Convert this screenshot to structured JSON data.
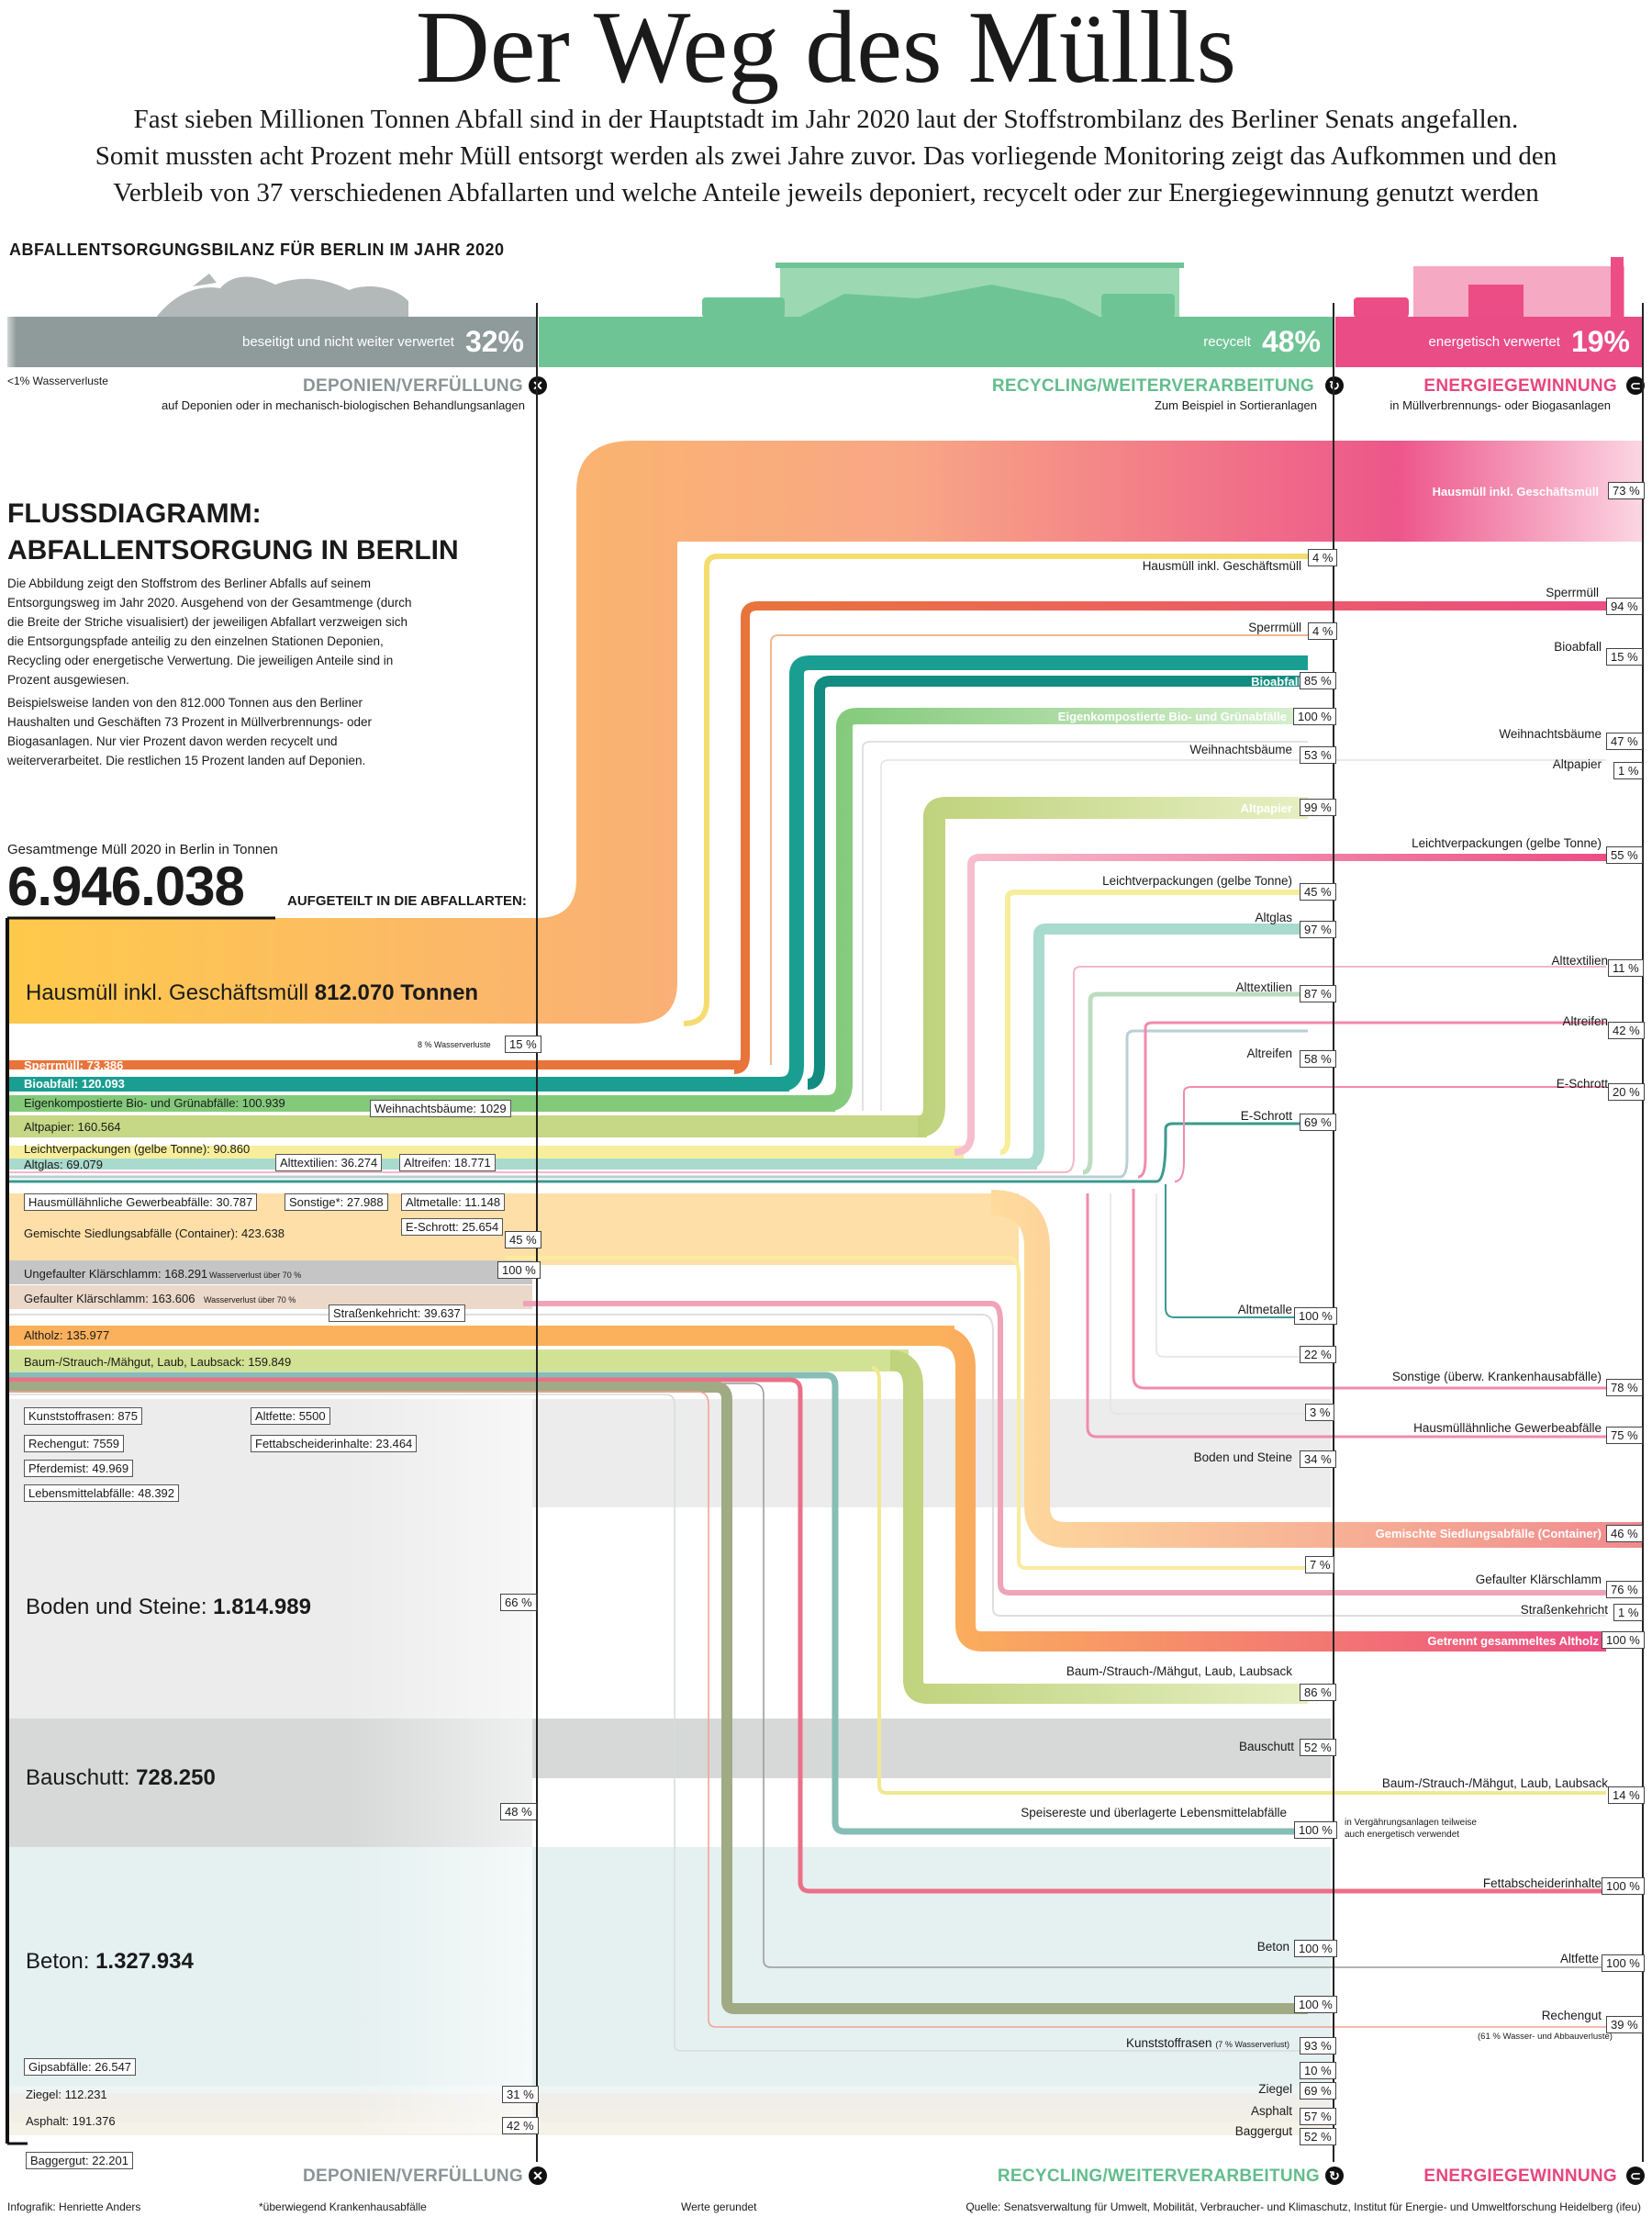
{
  "title": "Der Weg des Müllls",
  "intro": [
    "Fast sieben Millionen Tonnen Abfall sind in der Hauptstadt im Jahr 2020 laut der Stoffstrombilanz des Berliner Senats angefallen.",
    "Somit mussten acht Prozent mehr Müll entsorgt werden als zwei Jahre zuvor. Das vorliegende Monitoring zeigt das Aufkommen und den",
    "Verbleib von 37 verschiedenen Abfallarten und welche Anteile jeweils deponiert, recycelt oder zur Energiegewinnung genutzt werden"
  ],
  "bilanz": {
    "heading": "ABFALLENTSORGUNGSBILANZ FÜR BERLIN IM JAHR 2020",
    "water_note": "<1% Wasserverluste",
    "bars": [
      {
        "label": "beseitigt und nicht weiter verwertet",
        "pct": "32%",
        "value": 32,
        "color": "#8f9a9a"
      },
      {
        "label": "recycelt",
        "pct": "48%",
        "value": 48,
        "color": "#6fc495"
      },
      {
        "label": "energetisch verwertet",
        "pct": "19%",
        "value": 19,
        "color": "#ea4c86"
      }
    ],
    "categories": [
      {
        "name": "DEPONIEN/VERFÜLLUNG",
        "sub": "auf Deponien oder in mechanisch-biologischen Behandlungsanlagen",
        "color": "#8a9596",
        "symbol": "✕"
      },
      {
        "name": "RECYCLING/WEITERVERARBEITUNG",
        "sub": "Zum Beispiel in Sortieranlagen",
        "color": "#62bd8c",
        "symbol": "↻"
      },
      {
        "name": "ENERGIEGEWINNUNG",
        "sub": "in Müllverbrennungs- oder Biogasanlagen",
        "color": "#e8457e",
        "symbol": "⊂"
      }
    ]
  },
  "flow": {
    "heading_1": "FLUSSDIAGRAMM:",
    "heading_2": "ABFALLENTSORGUNG IN BERLIN",
    "desc_1": "Die Abbildung zeigt den Stoffstrom des Berliner Abfalls auf seinem Entsorgungsweg im Jahr 2020. Ausgehend von der Gesamtmenge (durch die Breite der Striche visualisiert) der jeweiligen Abfallart verzweigen sich die Entsorgungspfade anteilig zu den einzelnen Stationen Deponien, Recycling oder energetische Verwertung. Die jeweiligen Anteile sind in Prozent ausgewiesen.",
    "desc_2": "Beispielsweise landen von den 812.000 Tonnen aus den Berliner Haushalten und Geschäften 73 Prozent in Müllverbrennungs- oder Biogasanlagen. Nur vier Prozent davon werden recycelt und weiterverarbeitet. Die restlichen 15 Prozent landen auf Deponien.",
    "gesamt_label": "Gesamtmenge Müll 2020 in Berlin in Tonnen",
    "gesamt_value": "6.946.038",
    "aufgeteilt": "AUFGETEILT IN DIE ABFALLARTEN:"
  },
  "left": {
    "hausmuell_name": "Hausmüll inkl. Geschäftsmüll",
    "hausmuell_value": "812.070 Tonnen",
    "wasser_8": "8 % Wasserverluste",
    "p15": "15 %",
    "sperr": "Sperrmüll: 73.386",
    "bio": "Bioabfall: 120.093",
    "eigen": "Eigenkompostierte Bio- und Grünabfälle: 100.939",
    "weih": "Weihnachtsbäume: 1029",
    "altpapier": "Altpapier: 160.564",
    "leicht": "Leichtverpackungen (gelbe Tonne): 90.860",
    "altglas": "Altglas: 69.079",
    "alttext": "Alttextilien: 36.274",
    "altreifen": "Altreifen: 18.771",
    "hausaehnl": "Hausmüllähnliche Gewerbeabfälle: 30.787",
    "sonstige": "Sonstige*: 27.988",
    "altmetalle": "Altmetalle: 11.148",
    "eschrott": "E-Schrott: 25.654",
    "gemischt": "Gemischte Siedlungsabfälle (Container): 423.638",
    "p45": "45 %",
    "p100": "100 %",
    "ungefault": "Ungefaulter Klärschlamm: 168.291",
    "gefault": "Gefaulter Klärschlamm: 163.606",
    "wasser_70a": "Wasserverlust über 70 %",
    "wasser_70b": "Wasserverlust über 70 %",
    "strassen": "Straßenkehricht: 39.637",
    "altholz": "Altholz: 135.977",
    "baum": "Baum-/Strauch-/Mähgut, Laub, Laubsack: 159.849",
    "kunststoff": "Kunststoffrasen: 875",
    "rechengut": "Rechengut: 7559",
    "pferdemist": "Pferdemist: 49.969",
    "lebensmittel": "Lebensmittelabfälle: 48.392",
    "altfette": "Altfette: 5500",
    "fettab": "Fettabscheiderinhalte: 23.464",
    "boden_name": "Boden und Steine:",
    "boden_value": "1.814.989",
    "p66": "66 %",
    "bauschutt_name": "Bauschutt:",
    "bauschutt_value": "728.250",
    "p48": "48 %",
    "beton_name": "Beton:",
    "beton_value": "1.327.934",
    "gips": "Gipsabfälle: 26.547",
    "ziegel": "Ziegel: 112.231",
    "p31": "31 %",
    "asphalt": "Asphalt: 191.376",
    "p42": "42 %",
    "baggergut": "Baggergut: 22.201"
  },
  "recycling_labels": [
    {
      "text": "Hausmüll inkl. Geschäftsmüll",
      "pct": "4 %"
    },
    {
      "text": "Sperrmüll",
      "pct": "4 %"
    },
    {
      "text": "Bioabfall",
      "pct": "85 %"
    },
    {
      "text": "Eigenkompostierte Bio- und Grünabfälle",
      "pct": "100 %"
    },
    {
      "text": "Weihnachtsbäume",
      "pct": "53 %"
    },
    {
      "text": "Altpapier",
      "pct": "99 %"
    },
    {
      "text": "Leichtverpackungen (gelbe Tonne)",
      "pct": "45 %"
    },
    {
      "text": "Altglas",
      "pct": "97 %"
    },
    {
      "text": "Alttextilien",
      "pct": "87 %"
    },
    {
      "text": "Altreifen",
      "pct": "58 %"
    },
    {
      "text": "E-Schrott",
      "pct": "69 %"
    },
    {
      "text": "Altmetalle",
      "pct": "100 %"
    },
    {
      "text": "",
      "pct": "22 %"
    },
    {
      "text": "",
      "pct": "3 %"
    },
    {
      "text": "Boden und Steine",
      "pct": "34 %"
    },
    {
      "text": "",
      "pct": "7 %"
    },
    {
      "text": "Baum-/Strauch-/Mähgut, Laub, Laubsack",
      "pct": "86 %"
    },
    {
      "text": "Bauschutt",
      "pct": "52 %"
    },
    {
      "text": "Speisereste und überlagerte Lebensmittelabfälle",
      "pct": "100 %"
    },
    {
      "text": "Beton",
      "pct": "100 %"
    },
    {
      "text": "",
      "pct": "100 %"
    },
    {
      "text": "Kunststoffrasen",
      "pct": "93 %"
    },
    {
      "text": "",
      "pct": "10 %"
    },
    {
      "text": "Ziegel",
      "pct": "69 %"
    },
    {
      "text": "Asphalt",
      "pct": "57 %"
    },
    {
      "text": "Baggergut",
      "pct": "52 %"
    }
  ],
  "kunststoff_note": "(7 % Wasserverlust)",
  "vergaerung_note_1": "in Vergährungsanlagen teilweise",
  "vergaerung_note_2": "auch energetisch verwendet",
  "energy_labels": [
    {
      "text": "Hausmüll inkl. Geschäftsmüll",
      "pct": "73 %"
    },
    {
      "text": "Sperrmüll",
      "pct": "94 %"
    },
    {
      "text": "Bioabfall",
      "pct": "15 %"
    },
    {
      "text": "Weihnachtsbäume",
      "pct": "47 %"
    },
    {
      "text": "Altpapier",
      "pct": "1 %"
    },
    {
      "text": "Leichtverpackungen (gelbe Tonne)",
      "pct": "55 %"
    },
    {
      "text": "Alttextilien",
      "pct": "11 %"
    },
    {
      "text": "Altreifen",
      "pct": "42 %"
    },
    {
      "text": "E-Schrott",
      "pct": "20 %"
    },
    {
      "text": "Sonstige (überw. Krankenhausabfälle)",
      "pct": "78 %"
    },
    {
      "text": "Hausmüllähnliche Gewerbeabfälle",
      "pct": "75 %"
    },
    {
      "text": "Gemischte Siedlungsabfälle (Container)",
      "pct": "46 %"
    },
    {
      "text": "Gefaulter Klärschlamm",
      "pct": "76 %"
    },
    {
      "text": "Straßenkehricht",
      "pct": "1 %"
    },
    {
      "text": "Getrennt gesammeltes Altholz",
      "pct": "100 %"
    },
    {
      "text": "Baum-/Strauch-/Mähgut, Laub, Laubsack",
      "pct": "14 %"
    },
    {
      "text": "Fettabscheiderinhalte",
      "pct": "100 %"
    },
    {
      "text": "Altfette",
      "pct": "100 %"
    },
    {
      "text": "Rechengut",
      "pct": "39 %"
    }
  ],
  "rechengut_note": "(61 % Wasser- und Abbauverluste)",
  "footer": {
    "credit": "Infografik: Henriette Anders",
    "footnote": "*überwiegend Krankenhausabfälle",
    "rounded": "Werte gerundet",
    "source": "Quelle: Senatsverwaltung für Umwelt, Mobilität, Verbraucher- und Klimaschutz, Institut für Energie- und Umweltforschung Heidelberg (ifeu)"
  },
  "colors": {
    "hausmuell": "#fec741",
    "sperr": "#e8743b",
    "bio": "#1a9e92",
    "green": "#82c97a",
    "olive": "#c6d785",
    "pink": "#ec4d84",
    "grey": "#9aa3a4"
  }
}
